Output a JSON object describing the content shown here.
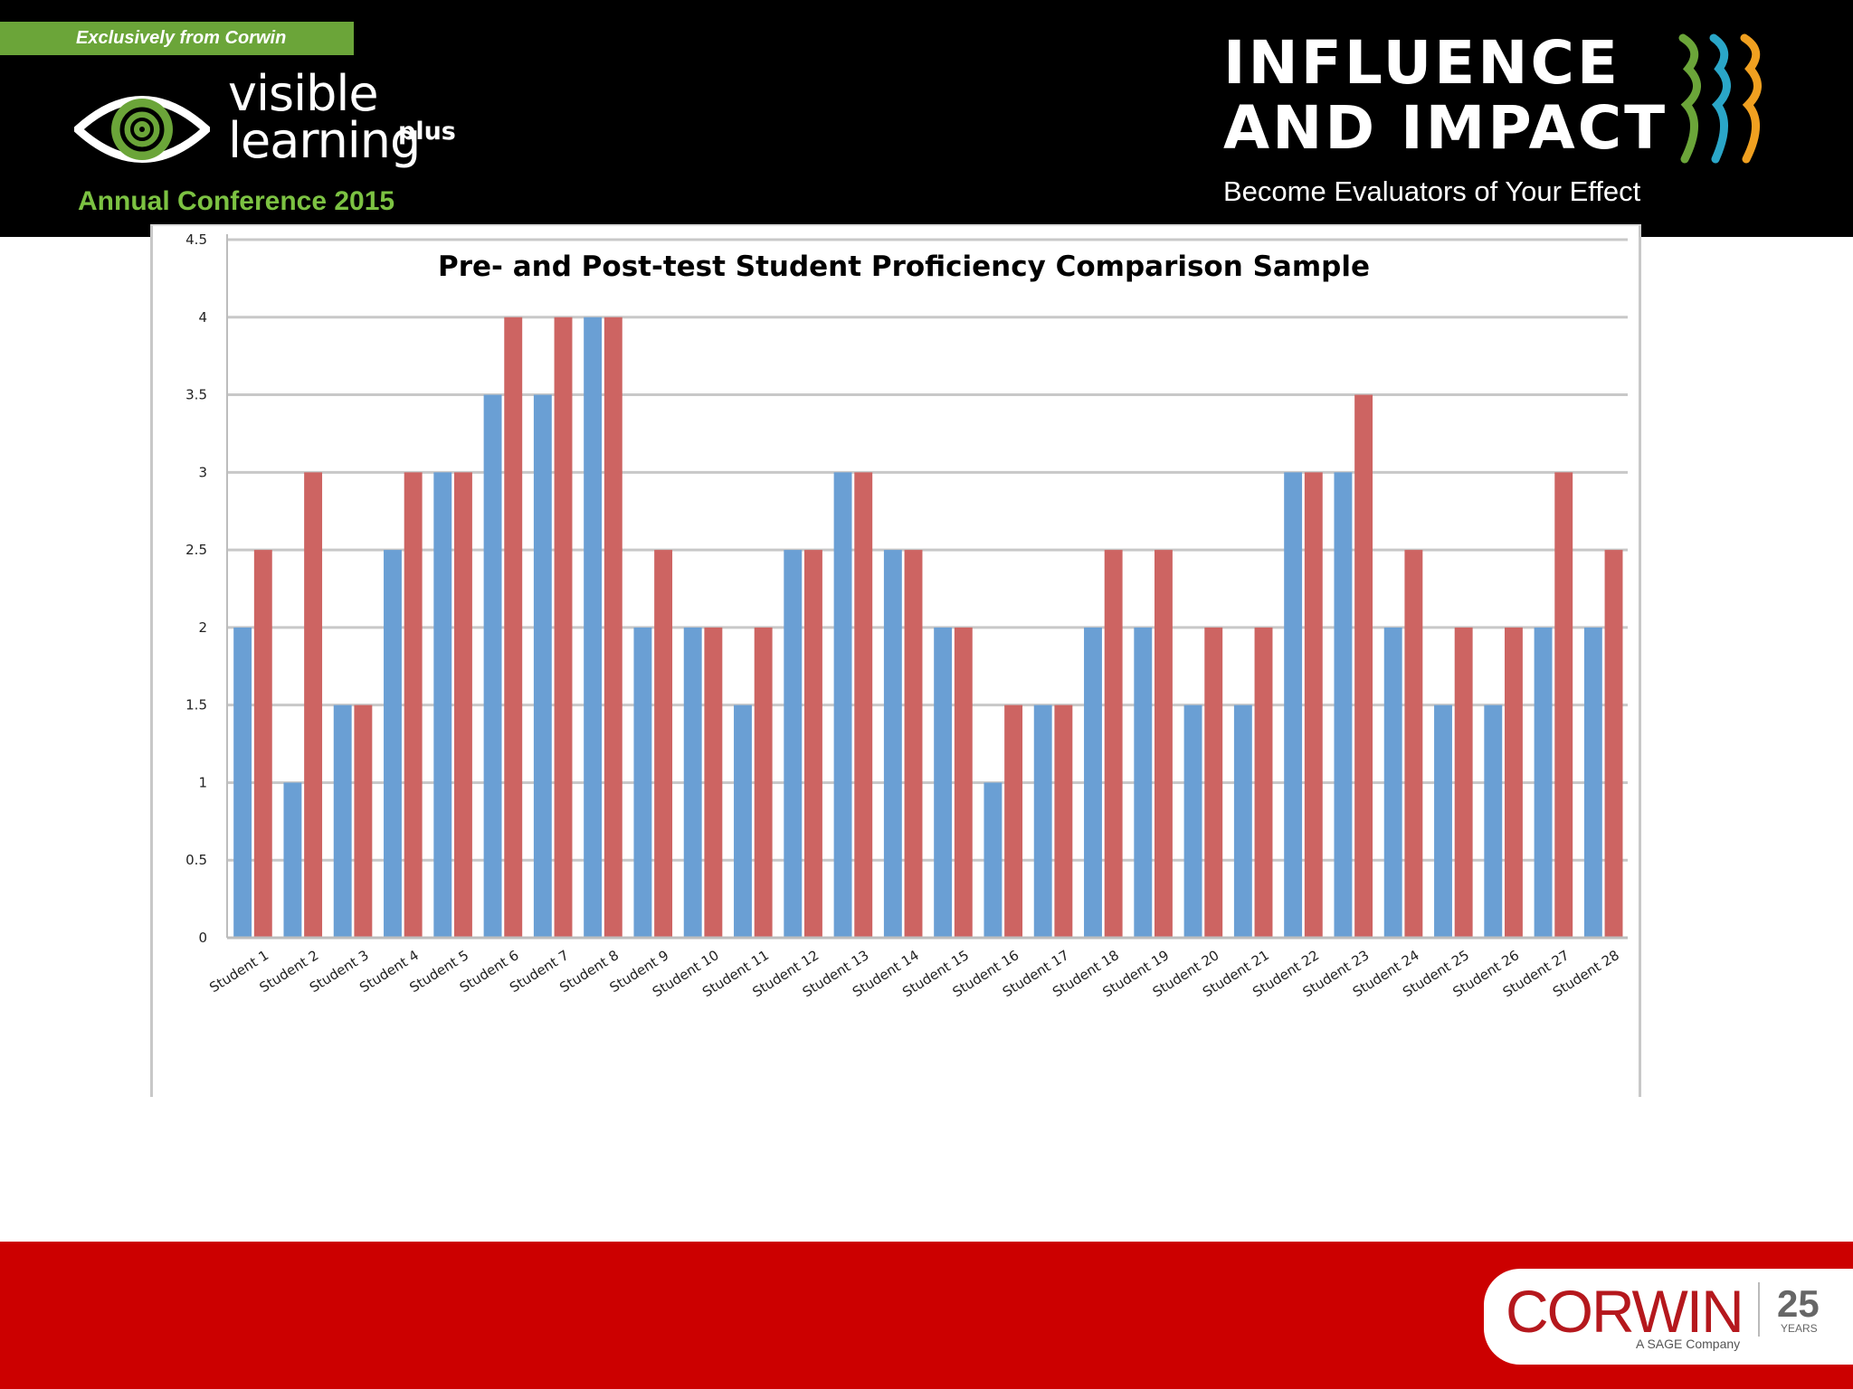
{
  "header": {
    "banner": "Exclusively from Corwin",
    "brand_line1": "visible",
    "brand_line2": "learning",
    "brand_sup": "plus",
    "conference": "Annual Conference 2015",
    "influence_title": "INFLUENCE\nAND IMPACT",
    "influence_subtitle": "Become Evaluators of Your Effect"
  },
  "footer": {
    "publisher": "CORWIN",
    "tagline": "A SAGE Company",
    "years_number": "25",
    "years_label": "YEARS"
  },
  "colors": {
    "series_pre": "#6a9fd4",
    "series_post": "#cd6462",
    "header_bg": "#000000",
    "footer_bg": "#cc0000",
    "brand_green": "#7cc242"
  },
  "chart_data": {
    "type": "bar",
    "title": "Pre- and Post-test Student Proficiency Comparison Sample",
    "xlabel": "",
    "ylabel": "",
    "ylim": [
      0,
      4.5
    ],
    "yticks": [
      "0",
      "0.5",
      "1",
      "1.5",
      "2",
      "2.5",
      "3",
      "3.5",
      "4",
      "4.5"
    ],
    "grid": true,
    "legend": "none",
    "categories": [
      "Student 1",
      "Student 2",
      "Student 3",
      "Student 4",
      "Student 5",
      "Student 6",
      "Student 7",
      "Student 8",
      "Student 9",
      "Student 10",
      "Student 11",
      "Student 12",
      "Student 13",
      "Student 14",
      "Student 15",
      "Student 16",
      "Student 17",
      "Student 18",
      "Student 19",
      "Student 20",
      "Student 21",
      "Student 22",
      "Student 23",
      "Student 24",
      "Student 25",
      "Student 26",
      "Student 27",
      "Student 28"
    ],
    "series": [
      {
        "color": "#6a9fd4",
        "values": [
          2,
          1,
          1.5,
          2.5,
          3,
          3.5,
          3.5,
          4,
          2,
          2,
          1.5,
          2.5,
          3,
          2.5,
          2,
          1,
          1.5,
          2,
          2,
          1.5,
          1.5,
          3,
          3,
          2,
          1.5,
          1.5,
          2,
          2
        ]
      },
      {
        "color": "#cd6462",
        "values": [
          2.5,
          3,
          1.5,
          3,
          3,
          4,
          4,
          4,
          2.5,
          2,
          2,
          2.5,
          3,
          2.5,
          2,
          1.5,
          1.5,
          2.5,
          2.5,
          2,
          2,
          3,
          3.5,
          2.5,
          2,
          2,
          3,
          2.5
        ]
      }
    ]
  }
}
